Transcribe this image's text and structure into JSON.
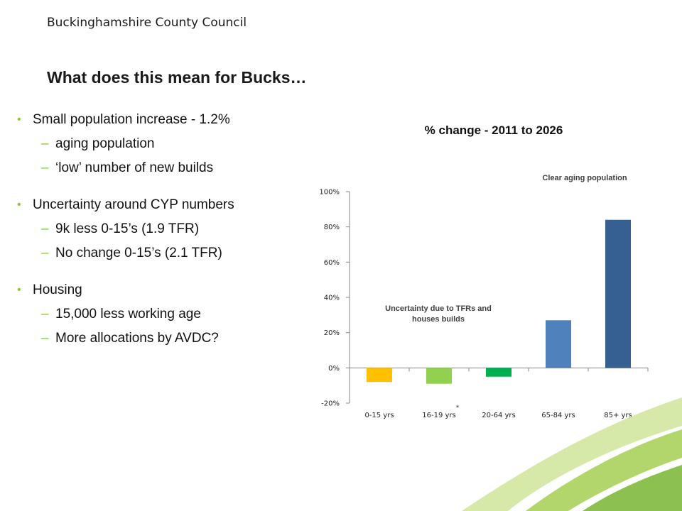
{
  "header": {
    "org": "Buckinghamshire County Council",
    "title": "What does this mean for Bucks…"
  },
  "bullets": [
    {
      "text": "Small population increase - 1.2%",
      "subs": [
        "aging population",
        "‘low’ number of new builds"
      ]
    },
    {
      "text": "Uncertainty around CYP numbers",
      "subs": [
        "9k less 0-15’s (1.9 TFR)",
        "No change 0-15’s (2.1 TFR)"
      ]
    },
    {
      "text": "Housing",
      "subs": [
        "15,000 less working age",
        "More allocations by AVDC?"
      ]
    }
  ],
  "chart_data": {
    "type": "bar",
    "title": "% change - 2011 to 2026",
    "categories": [
      "0-15 yrs",
      "16-19 yrs",
      "20-64 yrs",
      "65-84 yrs",
      "85+ yrs"
    ],
    "values": [
      -8,
      -9,
      -5,
      27,
      84
    ],
    "colors": [
      "#ffc000",
      "#92d050",
      "#00b050",
      "#4f81bd",
      "#376092"
    ],
    "ylim": [
      -20,
      100
    ],
    "yticks": [
      -20,
      0,
      20,
      40,
      60,
      80,
      100
    ],
    "ytick_labels": [
      "-20%",
      "0%",
      "20%",
      "40%",
      "60%",
      "80%",
      "100%"
    ],
    "annotations": [
      "Clear aging population",
      "Uncertainty due to TFRs and",
      "houses builds",
      "*"
    ],
    "grid": false
  },
  "colors": {
    "bullet": "#8dc63f",
    "swoosh_light": "#c5e08a",
    "swoosh_mid": "#a3cf5a",
    "swoosh_dark": "#7ab648"
  }
}
